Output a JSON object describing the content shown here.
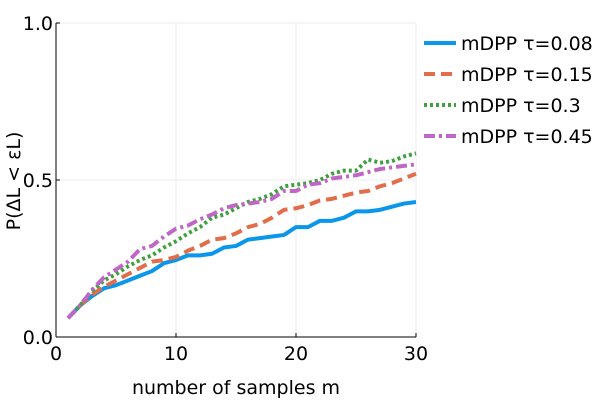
{
  "chart_data": {
    "type": "line",
    "title": "",
    "xlabel": "number of samples m",
    "ylabel": "P(ΔL < εL)",
    "xlim": [
      0,
      30
    ],
    "ylim": [
      0.0,
      1.0
    ],
    "xticks": [
      0,
      10,
      20,
      30
    ],
    "xtick_labels": [
      "0",
      "10",
      "20",
      "30"
    ],
    "yticks": [
      0.0,
      0.5,
      1.0
    ],
    "ytick_labels": [
      "0.0",
      "0.5",
      "1.0"
    ],
    "grid": true,
    "legend_position": "top-right",
    "x": [
      1,
      2,
      3,
      4,
      5,
      6,
      7,
      8,
      9,
      10,
      11,
      12,
      13,
      14,
      15,
      16,
      17,
      18,
      19,
      20,
      21,
      22,
      23,
      24,
      25,
      26,
      27,
      28,
      29,
      30
    ],
    "series": [
      {
        "name": "mDPP τ=0.08",
        "color": "#0a97eb",
        "style": "solid",
        "values": [
          0.06,
          0.1,
          0.13,
          0.155,
          0.165,
          0.18,
          0.195,
          0.21,
          0.235,
          0.245,
          0.26,
          0.26,
          0.265,
          0.285,
          0.29,
          0.31,
          0.315,
          0.32,
          0.325,
          0.35,
          0.35,
          0.37,
          0.37,
          0.38,
          0.4,
          0.4,
          0.405,
          0.415,
          0.425,
          0.43
        ]
      },
      {
        "name": "mDPP τ=0.15",
        "color": "#e26d4a",
        "style": "dashed",
        "values": [
          0.06,
          0.1,
          0.135,
          0.16,
          0.18,
          0.2,
          0.22,
          0.24,
          0.245,
          0.255,
          0.275,
          0.29,
          0.31,
          0.315,
          0.33,
          0.35,
          0.36,
          0.38,
          0.405,
          0.41,
          0.42,
          0.435,
          0.44,
          0.45,
          0.46,
          0.465,
          0.48,
          0.49,
          0.505,
          0.52
        ]
      },
      {
        "name": "mDPP τ=0.3",
        "color": "#3fa03f",
        "style": "dotted",
        "values": [
          0.06,
          0.1,
          0.145,
          0.18,
          0.2,
          0.225,
          0.245,
          0.26,
          0.285,
          0.305,
          0.33,
          0.35,
          0.38,
          0.39,
          0.41,
          0.43,
          0.44,
          0.455,
          0.48,
          0.485,
          0.49,
          0.5,
          0.52,
          0.53,
          0.53,
          0.565,
          0.555,
          0.56,
          0.575,
          0.585
        ]
      },
      {
        "name": "mDPP τ=0.45",
        "color": "#c066c6",
        "style": "dashdot",
        "values": [
          0.06,
          0.1,
          0.15,
          0.19,
          0.215,
          0.24,
          0.28,
          0.29,
          0.32,
          0.345,
          0.355,
          0.375,
          0.39,
          0.41,
          0.42,
          0.425,
          0.43,
          0.44,
          0.465,
          0.465,
          0.485,
          0.49,
          0.505,
          0.51,
          0.515,
          0.525,
          0.535,
          0.54,
          0.545,
          0.55
        ]
      }
    ]
  }
}
